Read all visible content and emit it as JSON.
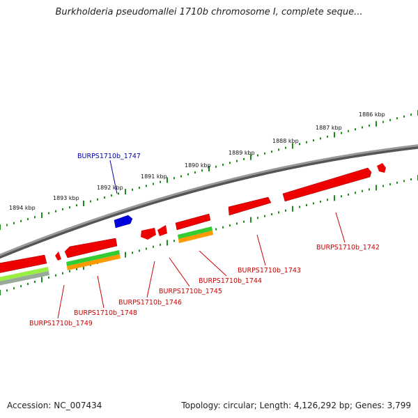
{
  "title": "Burkholderia pseudomallei 1710b chromosome I, complete seque...",
  "footer": {
    "accession": "Accession: NC_007434",
    "summary": "Topology: circular; Length: 4,126,292 bp; Genes: 3,799"
  },
  "colors": {
    "backbone": "#777777",
    "tick": "#1a8c1a",
    "gene_forward": "#ee0000",
    "gene_highlight": "#0000dd",
    "label_default": "#cc0000",
    "label_highlight": "#0000aa",
    "feature_green": "#33cc33",
    "feature_orange": "#ff9900",
    "feature_lime": "#99ee44",
    "feature_gray": "#99aa99"
  },
  "kbp_labels": [
    "1886 kbp",
    "1887 kbp",
    "1888 kbp",
    "1889 kbp",
    "1890 kbp",
    "1891 kbp",
    "1892 kbp",
    "1893 kbp",
    "1894 kbp"
  ],
  "gene_labels": [
    {
      "text": "BURPS1710b_1747",
      "highlight": true
    },
    {
      "text": "BURPS1710b_1742",
      "highlight": false
    },
    {
      "text": "BURPS1710b_1743",
      "highlight": false
    },
    {
      "text": "BURPS1710b_1744",
      "highlight": false
    },
    {
      "text": "BURPS1710b_1745",
      "highlight": false
    },
    {
      "text": "BURPS1710b_1746",
      "highlight": false
    },
    {
      "text": "BURPS1710b_1748",
      "highlight": false
    },
    {
      "text": "BURPS1710b_1749",
      "highlight": false
    }
  ]
}
